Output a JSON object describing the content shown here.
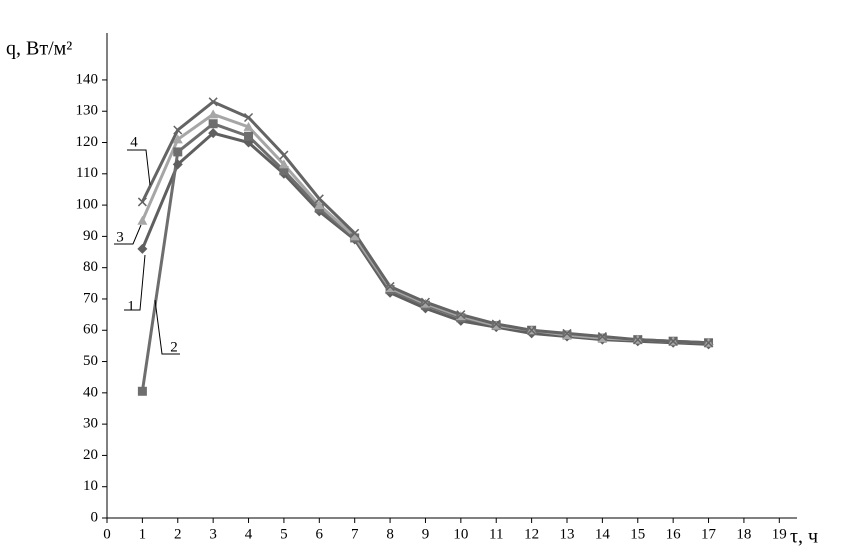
{
  "chart_data": {
    "type": "line",
    "y_label": "q, Вт/м²",
    "x_label": "τ, ч",
    "x": [
      1,
      2,
      3,
      4,
      5,
      6,
      7,
      8,
      9,
      10,
      11,
      12,
      13,
      14,
      15,
      16,
      17
    ],
    "series": [
      {
        "name": "1",
        "color": "#5f5f5f",
        "marker": "diamond",
        "values": [
          86,
          113,
          123,
          120,
          110,
          98,
          89,
          72,
          67,
          63,
          61,
          59,
          58,
          57,
          56.5,
          56,
          55.5
        ]
      },
      {
        "name": "2",
        "color": "#6e6e6e",
        "marker": "square",
        "values": [
          40.5,
          117,
          126,
          122,
          111,
          99,
          89.5,
          73,
          68,
          64,
          61.5,
          60,
          58.5,
          57.5,
          57,
          56.5,
          56
        ]
      },
      {
        "name": "3",
        "color": "#a6a6a6",
        "marker": "triangle",
        "values": [
          95,
          121,
          129,
          125,
          113,
          100,
          90,
          73.5,
          68.5,
          64.5,
          61.5,
          60,
          58.5,
          57.5,
          57,
          56.5,
          56
        ]
      },
      {
        "name": "4",
        "color": "#646464",
        "marker": "x",
        "values": [
          101,
          124,
          133,
          128,
          116,
          102,
          91,
          74,
          69,
          65,
          62,
          60,
          59,
          58,
          57,
          56.5,
          56
        ]
      }
    ],
    "xlim": [
      0,
      19.5
    ],
    "ylim": [
      0,
      155
    ],
    "xticks": [
      0,
      1,
      2,
      3,
      4,
      5,
      6,
      7,
      8,
      9,
      10,
      11,
      12,
      13,
      14,
      15,
      16,
      17,
      18,
      19
    ],
    "yticks": [
      0,
      10,
      20,
      30,
      40,
      50,
      60,
      70,
      80,
      90,
      100,
      110,
      120,
      130,
      140
    ],
    "grid": false
  }
}
